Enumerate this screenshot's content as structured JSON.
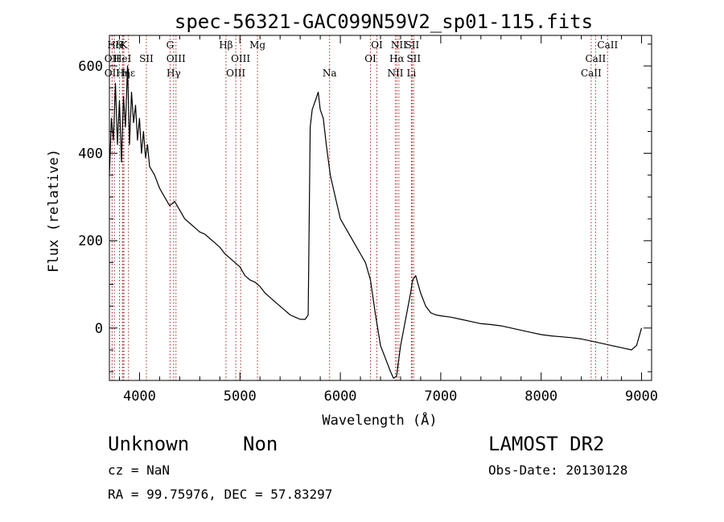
{
  "chart_data": {
    "type": "line",
    "title": "spec-56321-GAC099N59V2_sp01-115.fits",
    "xlabel": "Wavelength (Å)",
    "ylabel": "Flux (relative)",
    "xlim": [
      3700,
      9100
    ],
    "ylim": [
      -120,
      670
    ],
    "xticks": [
      4000,
      5000,
      6000,
      7000,
      8000,
      9000
    ],
    "yticks": [
      0,
      200,
      400,
      600
    ],
    "series": [
      {
        "x": [
          3700,
          3720,
          3740,
          3760,
          3780,
          3800,
          3820,
          3840,
          3860,
          3880,
          3900,
          3920,
          3940,
          3960,
          3980,
          4000,
          4020,
          4040,
          4060,
          4080,
          4100,
          4150,
          4200,
          4250,
          4300,
          4350,
          4400,
          4450,
          4500,
          4550,
          4600,
          4650,
          4700,
          4750,
          4800,
          4850,
          4900,
          4950,
          5000,
          5050,
          5100,
          5150,
          5200,
          5250,
          5300,
          5350,
          5400,
          5450,
          5500,
          5550,
          5600,
          5650,
          5680,
          5700,
          5720,
          5750,
          5780,
          5800,
          5830,
          5860,
          5900,
          5950,
          6000,
          6050,
          6100,
          6150,
          6200,
          6250,
          6300,
          6350,
          6400,
          6450,
          6500,
          6530,
          6560,
          6600,
          6650,
          6700,
          6720,
          6750,
          6800,
          6850,
          6900,
          6950,
          7000,
          7100,
          7200,
          7300,
          7400,
          7500,
          7600,
          7700,
          7800,
          7900,
          8000,
          8100,
          8200,
          8300,
          8400,
          8500,
          8600,
          8700,
          8800,
          8900,
          8950,
          9000
        ],
        "y": [
          350,
          480,
          430,
          560,
          420,
          520,
          380,
          530,
          460,
          600,
          420,
          540,
          470,
          510,
          430,
          480,
          400,
          450,
          390,
          420,
          370,
          350,
          320,
          300,
          280,
          290,
          270,
          250,
          240,
          230,
          220,
          215,
          205,
          195,
          185,
          170,
          160,
          150,
          140,
          120,
          110,
          105,
          95,
          80,
          70,
          60,
          50,
          40,
          30,
          25,
          20,
          20,
          30,
          460,
          500,
          520,
          540,
          500,
          480,
          420,
          350,
          300,
          250,
          230,
          210,
          190,
          170,
          150,
          110,
          30,
          -40,
          -70,
          -100,
          -115,
          -110,
          -40,
          20,
          80,
          110,
          120,
          80,
          50,
          35,
          30,
          28,
          25,
          20,
          15,
          10,
          8,
          5,
          0,
          -5,
          -10,
          -15,
          -18,
          -20,
          -22,
          -25,
          -30,
          -35,
          -40,
          -45,
          -50,
          -40,
          0
        ]
      }
    ],
    "line_markers": [
      {
        "label": "Hδ",
        "x": 3750,
        "row": 0
      },
      {
        "label": "H",
        "x": 3800,
        "row": 0
      },
      {
        "label": "K",
        "x": 3845,
        "row": 0
      },
      {
        "label": "OII",
        "x": 3727,
        "row": 1
      },
      {
        "label": "HeI",
        "x": 3830,
        "row": 1
      },
      {
        "label": "SII",
        "x": 4068,
        "row": 1
      },
      {
        "label": "OII",
        "x": 3727,
        "row": 2
      },
      {
        "label": "Hη",
        "x": 3835,
        "row": 2
      },
      {
        "label": "Hε",
        "x": 3890,
        "row": 2
      },
      {
        "label": "G",
        "x": 4304,
        "row": 0
      },
      {
        "label": "OIII",
        "x": 4363,
        "row": 1
      },
      {
        "label": "Hγ",
        "x": 4340,
        "row": 2
      },
      {
        "label": "Hβ",
        "x": 4861,
        "row": 0
      },
      {
        "label": "Mg",
        "x": 5175,
        "row": 0
      },
      {
        "label": "OIII",
        "x": 5007,
        "row": 1
      },
      {
        "label": "OIII",
        "x": 4959,
        "row": 2
      },
      {
        "label": "Na",
        "x": 5893,
        "row": 2
      },
      {
        "label": "OI",
        "x": 6364,
        "row": 0
      },
      {
        "label": "OI",
        "x": 6300,
        "row": 1
      },
      {
        "label": "NII",
        "x": 6583,
        "row": 0
      },
      {
        "label": "SII",
        "x": 6716,
        "row": 0
      },
      {
        "label": "Hα",
        "x": 6563,
        "row": 1
      },
      {
        "label": "SII",
        "x": 6731,
        "row": 1
      },
      {
        "label": "NII",
        "x": 6548,
        "row": 2
      },
      {
        "label": "Li",
        "x": 6708,
        "row": 2
      },
      {
        "label": "CaII",
        "x": 8662,
        "row": 0
      },
      {
        "label": "CaII",
        "x": 8542,
        "row": 1
      },
      {
        "label": "CaII",
        "x": 8498,
        "row": 2
      }
    ]
  },
  "info": {
    "class": "Unknown",
    "subclass": "Non",
    "survey": "LAMOST DR2",
    "cz": "cz = NaN",
    "obs_date": "Obs-Date: 20130128",
    "coords": "RA =  99.75976, DEC =  57.83297"
  }
}
